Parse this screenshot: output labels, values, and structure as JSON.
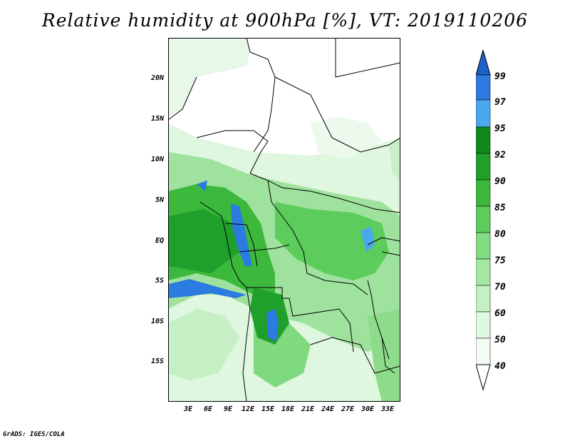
{
  "title": "Relative humidity at 900hPa [%], VT: 2019110206",
  "credit": "GrADS: IGES/COLA",
  "lat_labels": [
    "20N",
    "15N",
    "10N",
    "5N",
    "EQ",
    "5S",
    "10S",
    "15S"
  ],
  "lon_labels": [
    "3E",
    "6E",
    "9E",
    "12E",
    "15E",
    "18E",
    "21E",
    "24E",
    "27E",
    "30E",
    "33E"
  ],
  "colorbar": {
    "levels": [
      "99",
      "97",
      "95",
      "92",
      "90",
      "85",
      "80",
      "75",
      "70",
      "60",
      "50",
      "40"
    ],
    "colors": [
      "#1e5fc8",
      "#2b7be0",
      "#4aa8f0",
      "#0f8a1a",
      "#1fa02a",
      "#3cb83c",
      "#5ccc5c",
      "#82dc82",
      "#a4e8a4",
      "#c4f0c4",
      "#dff8df",
      "#f2fcf2"
    ]
  }
}
